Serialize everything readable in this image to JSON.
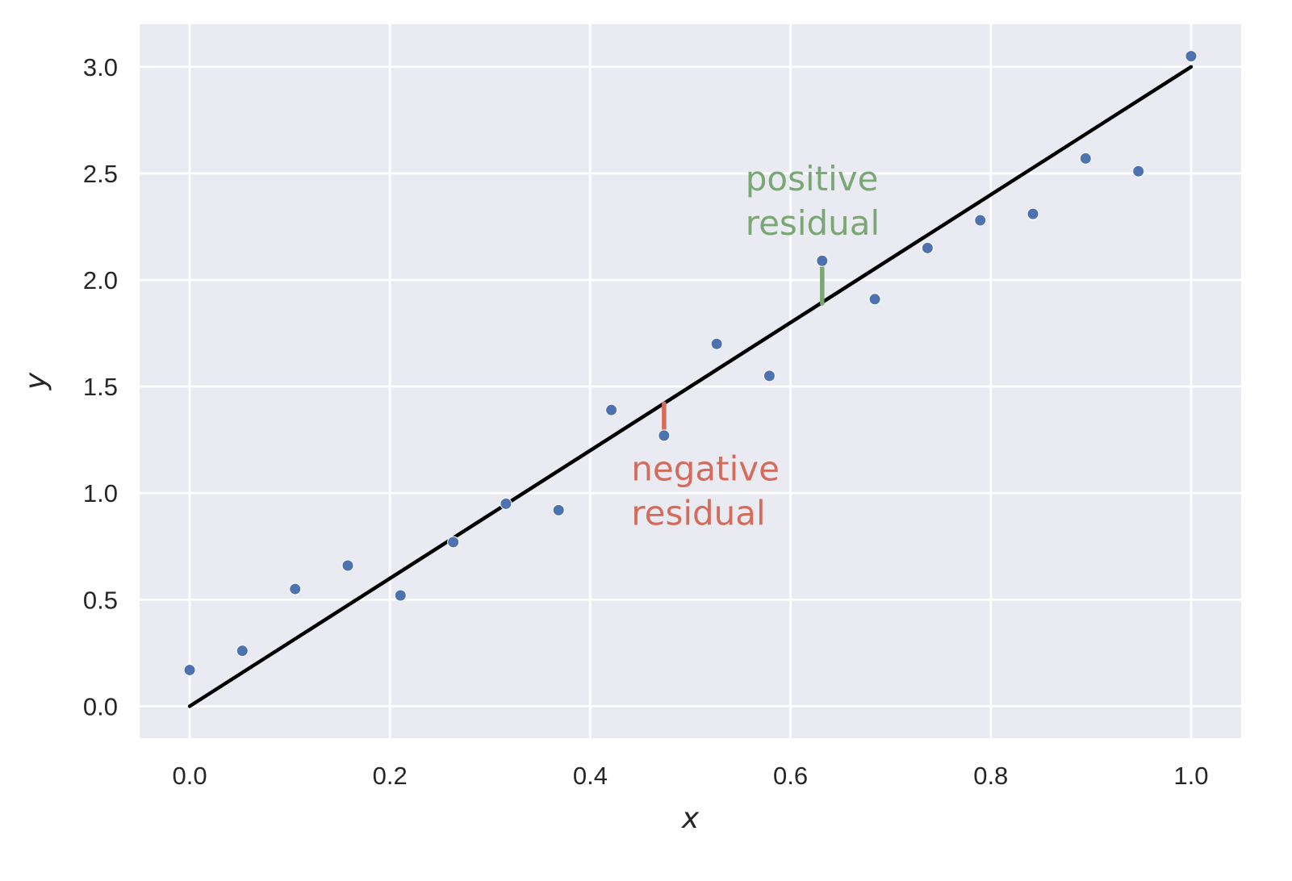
{
  "chart_data": {
    "type": "scatter",
    "title": "",
    "xlabel": "x",
    "ylabel": "y",
    "xlim": [
      -0.05,
      1.05
    ],
    "ylim": [
      -0.15,
      3.2
    ],
    "xticks": [
      "0.0",
      "0.2",
      "0.4",
      "0.6",
      "0.8",
      "1.0"
    ],
    "xtick_values": [
      0.0,
      0.2,
      0.4,
      0.6,
      0.8,
      1.0
    ],
    "yticks": [
      "0.0",
      "0.5",
      "1.0",
      "1.5",
      "2.0",
      "2.5",
      "3.0"
    ],
    "ytick_values": [
      0.0,
      0.5,
      1.0,
      1.5,
      2.0,
      2.5,
      3.0
    ],
    "grid": true,
    "background_color": "#eaeaf2",
    "points": {
      "color": "#4c72b0",
      "x": [
        0.0,
        0.0526,
        0.1053,
        0.1579,
        0.2105,
        0.2632,
        0.3158,
        0.3684,
        0.4211,
        0.4737,
        0.5263,
        0.5789,
        0.6316,
        0.6842,
        0.7368,
        0.7895,
        0.8421,
        0.8947,
        0.9474,
        1.0
      ],
      "y": [
        0.17,
        0.26,
        0.55,
        0.66,
        0.52,
        0.77,
        0.95,
        0.92,
        1.39,
        1.27,
        1.7,
        1.55,
        2.09,
        1.91,
        2.15,
        2.28,
        2.31,
        2.57,
        2.51,
        3.05
      ]
    },
    "fit_line": {
      "color": "#000000",
      "x": [
        0.0,
        1.0
      ],
      "y": [
        0.0,
        3.0
      ]
    },
    "annotations": [
      {
        "text_lines": [
          "positive",
          "residual"
        ],
        "color": "#7aa874",
        "segment": {
          "x": 0.6316,
          "y0": 1.89,
          "y1": 2.07
        },
        "text_pos": {
          "x": 0.555,
          "y": 2.42
        }
      },
      {
        "text_lines": [
          "negative",
          "residual"
        ],
        "color": "#d46c5b",
        "segment": {
          "x": 0.4737,
          "y0": 1.42,
          "y1": 1.28
        },
        "text_pos": {
          "x": 0.441,
          "y": 1.06
        }
      }
    ]
  }
}
